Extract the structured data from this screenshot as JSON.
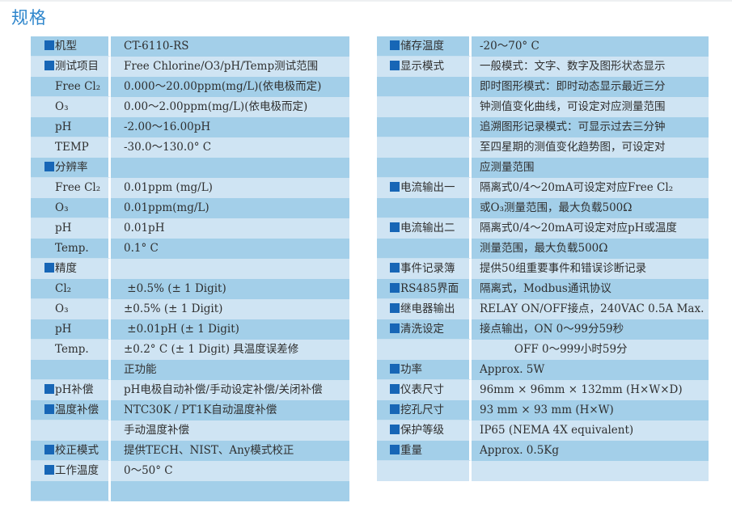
{
  "title": "规格",
  "colors": {
    "row_dark": "#a3cfe9",
    "row_light": "#cfe4f3",
    "bullet": "#1766b6",
    "title": "#2f86cc"
  },
  "left_table": [
    {
      "bullet": true,
      "label": "机型",
      "value": "CT-6110-RS"
    },
    {
      "bullet": true,
      "label": "测试项目",
      "value": "Free Chlorine/O3/pH/Temp测试范围"
    },
    {
      "bullet": false,
      "label": "Free Cl₂",
      "value": "0.000～20.00ppm(mg/L)(依电极而定)"
    },
    {
      "bullet": false,
      "label": "O₃",
      "value": "0.00～2.00ppm(mg/L)(依电极而定)"
    },
    {
      "bullet": false,
      "label": "pH",
      "value": "-2.00～16.00pH"
    },
    {
      "bullet": false,
      "label": "TEMP",
      "value": "-30.0～130.0° C"
    },
    {
      "bullet": true,
      "label": "分辨率",
      "value": ""
    },
    {
      "bullet": false,
      "label": "Free Cl₂",
      "value": "0.01ppm (mg/L)"
    },
    {
      "bullet": false,
      "label": "O₃",
      "value": "0.01ppm(mg/L)"
    },
    {
      "bullet": false,
      "label": "pH",
      "value": "0.01pH"
    },
    {
      "bullet": false,
      "label": "Temp.",
      "value": "0.1° C"
    },
    {
      "bullet": true,
      "label": "精度",
      "value": ""
    },
    {
      "bullet": false,
      "label": "Cl₂",
      "value": " ±0.5% (± 1 Digit)"
    },
    {
      "bullet": false,
      "label": "O₃",
      "value": "±0.5% (± 1 Digit)"
    },
    {
      "bullet": false,
      "label": "pH",
      "value": " ±0.01pH (± 1 Digit)"
    },
    {
      "bullet": false,
      "label": "Temp.",
      "value": "±0.2° C (± 1 Digit) 具温度误差修"
    },
    {
      "bullet": false,
      "label": "",
      "value": "正功能"
    },
    {
      "bullet": true,
      "label": "pH补偿",
      "value": "pH电极自动补偿/手动设定补偿/关闭补偿"
    },
    {
      "bullet": true,
      "label": "温度补偿",
      "value": "NTC30K / PT1K自动温度补偿"
    },
    {
      "bullet": false,
      "label": "",
      "value": "手动温度补偿"
    },
    {
      "bullet": true,
      "label": "校正模式",
      "value": "提供TECH、NIST、Any模式校正"
    },
    {
      "bullet": true,
      "label": "工作温度",
      "value": "0～50° C"
    },
    {
      "bullet": false,
      "label": "",
      "value": ""
    }
  ],
  "right_table": [
    {
      "bullet": true,
      "label": "储存温度",
      "value": "-20～70° C"
    },
    {
      "bullet": true,
      "label": "显示模式",
      "value": "一般模式：文字、数字及图形状态显示"
    },
    {
      "bullet": false,
      "label": "",
      "value": "即时图形模式：即时动态显示最近三分"
    },
    {
      "bullet": false,
      "label": "",
      "value": "钟测值变化曲线，可设定对应测量范围"
    },
    {
      "bullet": false,
      "label": "",
      "value": "追溯图形记录模式：可显示过去三分钟"
    },
    {
      "bullet": false,
      "label": "",
      "value": "至四星期的测值变化趋势图，可设定对"
    },
    {
      "bullet": false,
      "label": "",
      "value": "应测量范围"
    },
    {
      "bullet": true,
      "label": "电流输出一",
      "value": "隔离式0/4～20mA可设定对应Free Cl₂"
    },
    {
      "bullet": false,
      "label": "",
      "value": "或O₃测量范围，最大负载500Ω"
    },
    {
      "bullet": true,
      "label": "电流输出二",
      "value": "隔离式0/4～20mA可设定对应pH或温度"
    },
    {
      "bullet": false,
      "label": "",
      "value": "测量范围，最大负载500Ω"
    },
    {
      "bullet": true,
      "label": "事件记录簿",
      "value": "提供50组重要事件和错误诊断记录"
    },
    {
      "bullet": true,
      "label": "RS485界面",
      "value": "隔离式，Modbus通讯协议"
    },
    {
      "bullet": true,
      "label": "继电器输出",
      "value": "RELAY ON/OFF接点，240VAC 0.5A Max."
    },
    {
      "bullet": true,
      "label": "清洗设定",
      "value": "接点输出，ON 0～99分59秒"
    },
    {
      "bullet": false,
      "label": "",
      "value": "          OFF 0～999小时59分"
    },
    {
      "bullet": true,
      "label": "功率",
      "value": "Approx. 5W"
    },
    {
      "bullet": true,
      "label": "仪表尺寸",
      "value": "96mm × 96mm × 132mm (H×W×D)"
    },
    {
      "bullet": true,
      "label": "挖孔尺寸",
      "value": "93 mm × 93 mm (H×W)"
    },
    {
      "bullet": true,
      "label": "保护等级",
      "value": "IP65 (NEMA 4X equivalent)"
    },
    {
      "bullet": true,
      "label": "重量",
      "value": "Approx. 0.5Kg"
    },
    {
      "bullet": false,
      "label": "",
      "value": ""
    }
  ]
}
